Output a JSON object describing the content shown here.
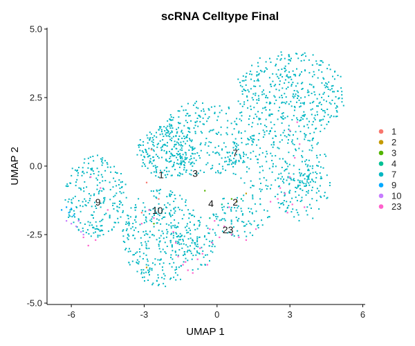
{
  "chart_data": {
    "type": "scatter",
    "title": "scRNA Celltype Final",
    "xlabel": "UMAP 1",
    "ylabel": "UMAP 2",
    "xlim": [
      -7.0,
      6.1
    ],
    "ylim": [
      -5.05,
      5.05
    ],
    "xticks": [
      -6,
      -3,
      0,
      3,
      6
    ],
    "yticks": [
      5.0,
      2.5,
      0.0,
      -2.5,
      -5.0
    ],
    "xtick_labels": [
      "-6",
      "-3",
      "0",
      "3",
      "6"
    ],
    "ytick_labels": [
      "5.0",
      "2.5",
      "0.0",
      "-2.5",
      "-5.0"
    ],
    "grid": false,
    "legend_position": "right",
    "series": [
      {
        "name": "1",
        "color": "#F8766D",
        "points": [
          [
            -2.9,
            -0.6
          ],
          [
            -2.7,
            0.6
          ],
          [
            -2.4,
            -1.2
          ],
          [
            -3.1,
            -1.7
          ]
        ]
      },
      {
        "name": "2",
        "color": "#C49A00",
        "points": [
          [
            -2.9,
            -3.7
          ],
          [
            1.2,
            -1.0
          ],
          [
            0.8,
            -1.3
          ]
        ]
      },
      {
        "name": "3",
        "color": "#53B400",
        "points": [
          [
            0.6,
            -1.2
          ],
          [
            -0.5,
            -0.9
          ],
          [
            -2.6,
            -2.1
          ]
        ]
      },
      {
        "name": "4",
        "color": "#00C094",
        "points": [
          [
            1.0,
            -1.2
          ],
          [
            0.2,
            -1.4
          ],
          [
            -0.3,
            -1.9
          ]
        ]
      },
      {
        "name": "7",
        "color": "#00B6C2",
        "points": [],
        "clusters": [
          {
            "cx": -5.0,
            "cy": -1.1,
            "rx": 1.3,
            "ry": 1.5,
            "n": 230
          },
          {
            "cx": -2.3,
            "cy": -2.6,
            "rx": 1.6,
            "ry": 1.8,
            "n": 330
          },
          {
            "cx": -2.1,
            "cy": 0.5,
            "rx": 1.2,
            "ry": 1.0,
            "n": 220
          },
          {
            "cx": -0.5,
            "cy": 1.0,
            "rx": 1.8,
            "ry": 1.4,
            "n": 260
          },
          {
            "cx": 3.0,
            "cy": 2.6,
            "rx": 2.3,
            "ry": 1.6,
            "n": 420
          },
          {
            "cx": 2.5,
            "cy": 0.2,
            "rx": 2.0,
            "ry": 1.2,
            "n": 200
          },
          {
            "cx": 1.0,
            "cy": -1.8,
            "rx": 1.2,
            "ry": 0.8,
            "n": 90
          },
          {
            "cx": 3.5,
            "cy": -0.9,
            "rx": 1.2,
            "ry": 1.1,
            "n": 120
          },
          {
            "cx": -1.0,
            "cy": -2.8,
            "rx": 1.0,
            "ry": 1.0,
            "n": 90
          }
        ]
      },
      {
        "name": "9",
        "color": "#00A9FF",
        "points": [
          [
            -6.2,
            -1.5
          ],
          [
            -6.1,
            -1.7
          ],
          [
            -6.4,
            -1.6
          ],
          [
            -6.0,
            -1.55
          ],
          [
            -5.9,
            -1.8
          ]
        ]
      },
      {
        "name": "10",
        "color": "#C77CFF",
        "points": [
          [
            -6.0,
            -2.1
          ],
          [
            -5.8,
            -2.2
          ],
          [
            -5.6,
            -2.4
          ],
          [
            -5.7,
            -2.0
          ],
          [
            -6.2,
            -2.0
          ],
          [
            -5.5,
            -2.5
          ]
        ]
      },
      {
        "name": "23",
        "color": "#FF61CC",
        "points": [
          [
            -1.6,
            -3.3
          ],
          [
            -1.4,
            -3.6
          ],
          [
            -1.2,
            -3.8
          ],
          [
            -1.0,
            -3.9
          ],
          [
            -1.3,
            -3.5
          ],
          [
            -0.8,
            -3.4
          ],
          [
            -0.6,
            -3.2
          ],
          [
            -1.7,
            -2.8
          ],
          [
            -0.3,
            -2.3
          ],
          [
            -0.1,
            -2.0
          ],
          [
            0.3,
            -2.2
          ],
          [
            0.6,
            -2.5
          ],
          [
            0.9,
            -2.6
          ],
          [
            1.2,
            -2.7
          ],
          [
            0.1,
            -2.6
          ],
          [
            -0.2,
            -2.8
          ],
          [
            2.6,
            -0.8
          ],
          [
            2.8,
            -1.0
          ],
          [
            3.0,
            -0.4
          ],
          [
            3.2,
            0.3
          ],
          [
            3.4,
            0.8
          ],
          [
            2.9,
            -1.7
          ],
          [
            3.1,
            -1.4
          ],
          [
            2.5,
            -1.2
          ],
          [
            3.3,
            1.6
          ],
          [
            3.0,
            1.3
          ],
          [
            -4.8,
            -0.8
          ],
          [
            -5.2,
            -0.4
          ],
          [
            -5.5,
            -2.6
          ],
          [
            -5.3,
            -2.9
          ],
          [
            -5.0,
            -2.7
          ],
          [
            -3.1,
            -2.1
          ],
          [
            -2.8,
            -1.6
          ],
          [
            -2.6,
            -1.9
          ],
          [
            -4.5,
            -1.6
          ],
          [
            0.5,
            -1.5
          ],
          [
            1.6,
            -2.3
          ],
          [
            2.2,
            -1.3
          ],
          [
            3.6,
            -1.5
          ],
          [
            -0.7,
            -3.0
          ],
          [
            -0.4,
            -3.6
          ],
          [
            -1.8,
            -2.4
          ]
        ]
      }
    ],
    "cluster_labels": [
      {
        "text": "1",
        "x": -2.3,
        "y": -0.35
      },
      {
        "text": "3",
        "x": -0.9,
        "y": -0.3
      },
      {
        "text": "7",
        "x": 0.75,
        "y": 0.45
      },
      {
        "text": "9",
        "x": -4.9,
        "y": -1.35
      },
      {
        "text": "10",
        "x": -2.45,
        "y": -1.65
      },
      {
        "text": "4",
        "x": -0.25,
        "y": -1.4
      },
      {
        "text": "2",
        "x": 0.75,
        "y": -1.35
      },
      {
        "text": "23",
        "x": 0.45,
        "y": -2.35
      }
    ]
  }
}
